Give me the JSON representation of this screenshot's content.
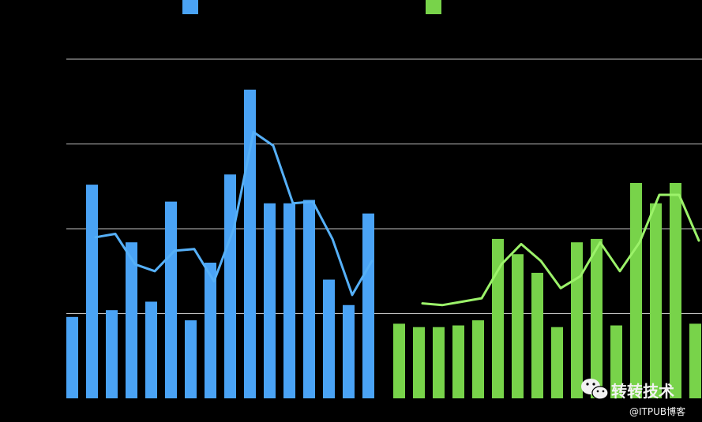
{
  "chart_data": {
    "type": "bar",
    "grid": true,
    "ylim": [
      0,
      200
    ],
    "gridlines": [
      50,
      100,
      150,
      200
    ],
    "legend_placement": "top",
    "series": [
      {
        "color": "#4aa3f5",
        "line_color": "#56b0f8",
        "values": [
          48,
          126,
          52,
          92,
          57,
          116,
          46,
          80,
          132,
          182,
          115,
          115,
          117,
          70,
          55,
          109
        ],
        "line": [
          95,
          97,
          79,
          75,
          87,
          88,
          69,
          100,
          157,
          149,
          115,
          116,
          94,
          61,
          81
        ]
      },
      {
        "color": "#78d34a",
        "line_color": "#9cf26a",
        "values": [
          44,
          42,
          42,
          43,
          46,
          94,
          85,
          74,
          42,
          92,
          94,
          43,
          127,
          115,
          127,
          44
        ],
        "line": [
          56,
          55,
          57,
          59,
          79,
          91,
          81,
          65,
          72,
          92,
          75,
          92,
          120,
          120,
          93
        ]
      }
    ]
  },
  "watermark": {
    "line1": "转转技术",
    "line2": "@ITPUB博客",
    "icon": "wechat-icon"
  }
}
